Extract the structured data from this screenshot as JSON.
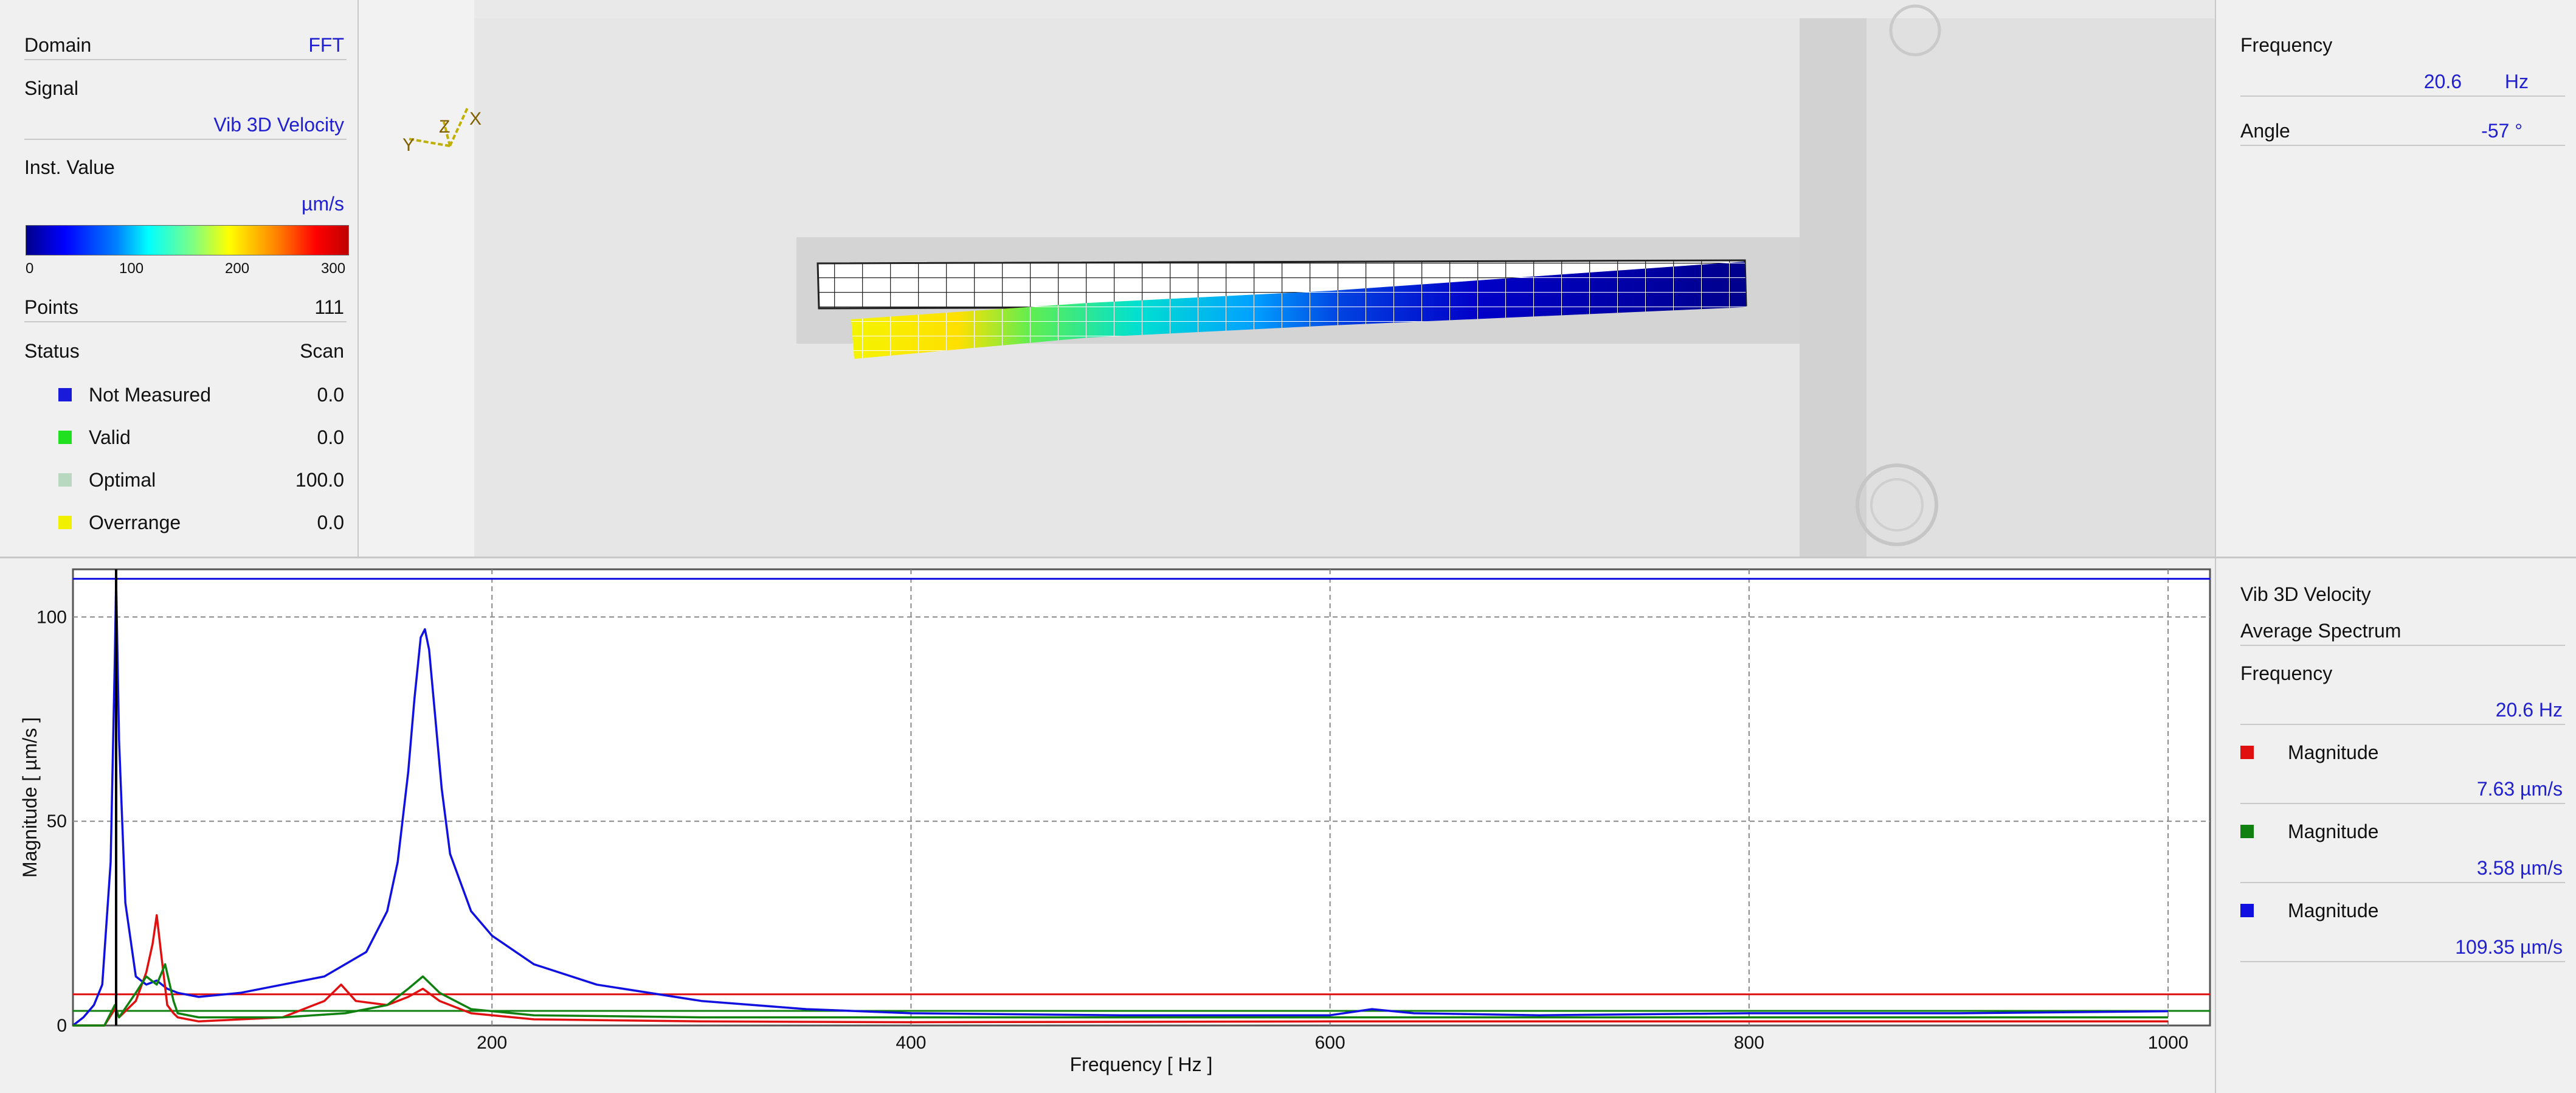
{
  "left": {
    "domain_label": "Domain",
    "domain_value": "FFT",
    "signal_label": "Signal",
    "signal_value": "Vib 3D Velocity",
    "inst_label": "Inst. Value",
    "unit": "µm/s",
    "colorbar_ticks": [
      "0",
      "100",
      "200",
      "300"
    ],
    "points_label": "Points",
    "points_value": "111",
    "status_label": "Status",
    "status_value": "Scan",
    "status_items": [
      {
        "label": "Not Measured",
        "value": "0.0",
        "color": "#1a1adb"
      },
      {
        "label": "Valid",
        "value": "0.0",
        "color": "#20e020"
      },
      {
        "label": "Optimal",
        "value": "100.0",
        "color": "#b8d8c0"
      },
      {
        "label": "Overrange",
        "value": "0.0",
        "color": "#f0f000"
      }
    ]
  },
  "viewer": {
    "axes_labels": {
      "x": "X",
      "y": "Y",
      "z": "Z"
    }
  },
  "right_top": {
    "frequency_label": "Frequency",
    "frequency_value": "20.6",
    "frequency_unit": "Hz",
    "angle_label": "Angle",
    "angle_value": "-57 °"
  },
  "right_bottom": {
    "signal_name": "Vib 3D Velocity",
    "spectrum_name": "Average Spectrum",
    "frequency_label": "Frequency",
    "frequency_value": "20.6 Hz",
    "magnitudes": [
      {
        "label": "Magnitude",
        "value": "7.63 µm/s",
        "color": "#e01010"
      },
      {
        "label": "Magnitude",
        "value": "3.58 µm/s",
        "color": "#108010"
      },
      {
        "label": "Magnitude",
        "value": "109.35 µm/s",
        "color": "#1010e0"
      }
    ]
  },
  "chart_data": {
    "type": "line",
    "xlabel": "Frequency [ Hz ]",
    "ylabel": "Magnitude [ µm/s ]",
    "xlim": [
      0,
      1000
    ],
    "ylim": [
      0,
      110
    ],
    "x_ticks": [
      200,
      400,
      600,
      800,
      1000
    ],
    "y_ticks": [
      0,
      50,
      100
    ],
    "grid": true,
    "cursor_x": 20.6,
    "series": [
      {
        "color": "#1010e0",
        "x": [
          0,
          5,
          10,
          14,
          18,
          20,
          20.6,
          22,
          25,
          30,
          35,
          40,
          45,
          50,
          60,
          80,
          100,
          120,
          130,
          140,
          150,
          155,
          160,
          163,
          166,
          168,
          170,
          173,
          176,
          180,
          190,
          200,
          220,
          250,
          300,
          350,
          400,
          500,
          600,
          620,
          640,
          700,
          800,
          900,
          1000
        ],
        "values": [
          0,
          2,
          5,
          10,
          40,
          90,
          109,
          70,
          30,
          12,
          10,
          11,
          9,
          8,
          7,
          8,
          10,
          12,
          15,
          18,
          28,
          40,
          62,
          80,
          95,
          97,
          92,
          75,
          58,
          42,
          28,
          22,
          15,
          10,
          6,
          4,
          3,
          2.5,
          2.5,
          4,
          3,
          2.5,
          3,
          3,
          3.5
        ]
      },
      {
        "color": "#e01010",
        "x": [
          0,
          15,
          20,
          22,
          30,
          35,
          38,
          40,
          42,
          45,
          48,
          50,
          60,
          100,
          120,
          128,
          135,
          150,
          160,
          167,
          175,
          190,
          220,
          300,
          400,
          600,
          800,
          1000
        ],
        "values": [
          0,
          0,
          4,
          2,
          6,
          13,
          20,
          27,
          18,
          5,
          3,
          2,
          1,
          2,
          6,
          10,
          6,
          5,
          7,
          9,
          6,
          3,
          1.5,
          1,
          0.8,
          1,
          1,
          1
        ]
      },
      {
        "color": "#108010",
        "x": [
          0,
          15,
          20,
          22,
          30,
          35,
          40,
          44,
          48,
          50,
          60,
          100,
          130,
          150,
          160,
          167,
          175,
          190,
          220,
          300,
          400,
          600,
          800,
          1000
        ],
        "values": [
          0,
          0,
          5,
          2,
          8,
          12,
          10,
          15,
          6,
          3,
          2,
          2,
          3,
          5,
          9,
          12,
          8,
          4,
          2.5,
          2,
          2,
          2,
          2,
          2
        ]
      }
    ],
    "reference_lines": [
      {
        "y": 109.35,
        "color": "#1010e0"
      },
      {
        "y": 7.63,
        "color": "#e01010"
      },
      {
        "y": 3.58,
        "color": "#108010"
      }
    ]
  }
}
